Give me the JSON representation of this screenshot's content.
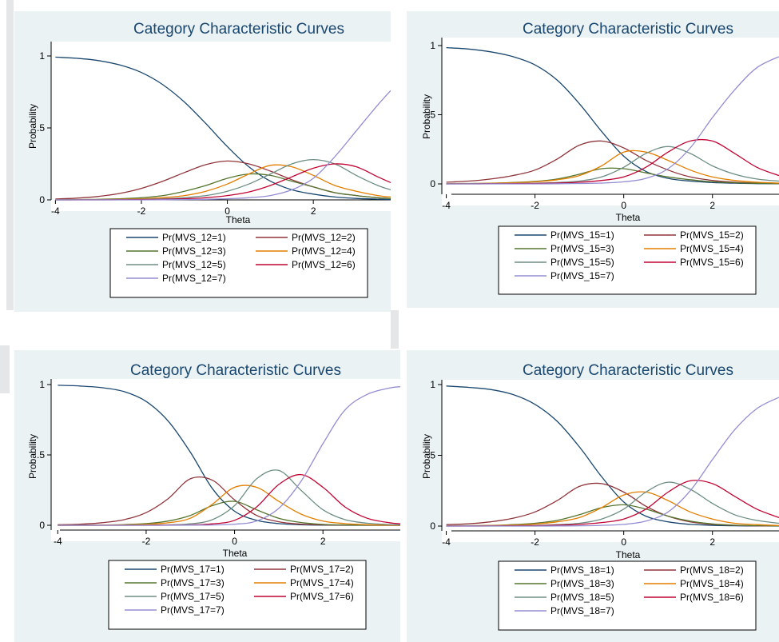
{
  "colors": {
    "panel_bg": "#eaf2f3",
    "plot_bg": "#ffffff",
    "title": "#1a476f",
    "cat1": "#1a476f",
    "cat2": "#90353b",
    "cat3": "#55752f",
    "cat4": "#e37e00",
    "cat5": "#6e8e84",
    "cat6": "#c10534",
    "cat7": "#938dd2"
  },
  "chart_data": [
    {
      "type": "line",
      "title": "Category Characteristic Curves",
      "xlabel": "Theta",
      "ylabel": "Probability",
      "xlim": [
        -4.1,
        3.8
      ],
      "ylim": [
        -0.03,
        1.03
      ],
      "xticks": [
        {
          "v": -4,
          "label": "-4"
        },
        {
          "v": -2,
          "label": "-2"
        },
        {
          "v": 0,
          "label": "0"
        },
        {
          "v": 2,
          "label": "2"
        }
      ],
      "yticks": [
        {
          "v": 0,
          "label": "0"
        },
        {
          "v": 0.5,
          "label": ".5"
        },
        {
          "v": 1,
          "label": "1"
        }
      ],
      "x": [
        -4.0,
        -3.5,
        -3.0,
        -2.5,
        -2.0,
        -1.5,
        -1.0,
        -0.5,
        0.0,
        0.5,
        1.0,
        1.5,
        2.0,
        2.5,
        3.0,
        3.5,
        3.8
      ],
      "series": [
        {
          "name": "Pr(MVS_12=1)",
          "color": "#1a476f",
          "values": [
            0.992,
            0.984,
            0.968,
            0.937,
            0.885,
            0.8,
            0.68,
            0.53,
            0.37,
            0.23,
            0.13,
            0.07,
            0.04,
            0.02,
            0.01,
            0.005,
            0.003
          ]
        },
        {
          "name": "Pr(MVS_12=2)",
          "color": "#90353b",
          "values": [
            0.006,
            0.012,
            0.024,
            0.045,
            0.08,
            0.13,
            0.19,
            0.245,
            0.27,
            0.25,
            0.2,
            0.14,
            0.09,
            0.05,
            0.03,
            0.015,
            0.01
          ]
        },
        {
          "name": "Pr(MVS_12=3)",
          "color": "#55752f",
          "values": [
            0.001,
            0.002,
            0.004,
            0.008,
            0.015,
            0.03,
            0.06,
            0.1,
            0.15,
            0.18,
            0.17,
            0.13,
            0.09,
            0.05,
            0.03,
            0.015,
            0.01
          ]
        },
        {
          "name": "Pr(MVS_12=4)",
          "color": "#e37e00",
          "values": [
            0.0005,
            0.001,
            0.002,
            0.004,
            0.008,
            0.016,
            0.03,
            0.06,
            0.11,
            0.18,
            0.24,
            0.23,
            0.17,
            0.1,
            0.06,
            0.03,
            0.02
          ]
        },
        {
          "name": "Pr(MVS_12=5)",
          "color": "#6e8e84",
          "values": [
            0,
            0.0005,
            0.001,
            0.002,
            0.004,
            0.008,
            0.015,
            0.03,
            0.06,
            0.11,
            0.18,
            0.25,
            0.28,
            0.25,
            0.17,
            0.1,
            0.07
          ]
        },
        {
          "name": "Pr(MVS_12=6)",
          "color": "#c10534",
          "values": [
            0,
            0,
            0,
            0.001,
            0.002,
            0.004,
            0.008,
            0.015,
            0.03,
            0.055,
            0.1,
            0.16,
            0.22,
            0.25,
            0.23,
            0.16,
            0.12
          ]
        },
        {
          "name": "Pr(MVS_12=7)",
          "color": "#938dd2",
          "values": [
            0,
            0,
            0,
            0,
            0,
            0.001,
            0.002,
            0.004,
            0.008,
            0.015,
            0.03,
            0.07,
            0.15,
            0.3,
            0.48,
            0.66,
            0.76
          ]
        }
      ]
    },
    {
      "type": "line",
      "title": "Category Characteristic Curves",
      "xlabel": "Theta",
      "ylabel": "Probability",
      "xlim": [
        -4.1,
        3.5
      ],
      "ylim": [
        -0.03,
        1.03
      ],
      "xticks": [
        {
          "v": -4,
          "label": "-4"
        },
        {
          "v": -2,
          "label": "-2"
        },
        {
          "v": 0,
          "label": "0"
        },
        {
          "v": 2,
          "label": "2"
        }
      ],
      "yticks": [
        {
          "v": 0,
          "label": "0"
        },
        {
          "v": 0.5,
          "label": ".5"
        },
        {
          "v": 1,
          "label": "1"
        }
      ],
      "x": [
        -4.0,
        -3.5,
        -3.0,
        -2.5,
        -2.0,
        -1.5,
        -1.0,
        -0.5,
        0.0,
        0.5,
        1.0,
        1.5,
        2.0,
        2.5,
        3.0,
        3.5
      ],
      "series": [
        {
          "name": "Pr(MVS_15=1)",
          "color": "#1a476f",
          "values": [
            0.985,
            0.975,
            0.955,
            0.92,
            0.86,
            0.75,
            0.58,
            0.38,
            0.2,
            0.09,
            0.04,
            0.02,
            0.01,
            0.005,
            0.002,
            0.001
          ]
        },
        {
          "name": "Pr(MVS_15=2)",
          "color": "#90353b",
          "values": [
            0.012,
            0.02,
            0.035,
            0.06,
            0.1,
            0.18,
            0.28,
            0.31,
            0.26,
            0.17,
            0.1,
            0.05,
            0.025,
            0.012,
            0.006,
            0.003
          ]
        },
        {
          "name": "Pr(MVS_15=3)",
          "color": "#55752f",
          "values": [
            0.002,
            0.003,
            0.005,
            0.01,
            0.018,
            0.035,
            0.07,
            0.11,
            0.11,
            0.08,
            0.05,
            0.03,
            0.015,
            0.008,
            0.004,
            0.002
          ]
        },
        {
          "name": "Pr(MVS_15=4)",
          "color": "#e37e00",
          "values": [
            0.001,
            0.002,
            0.004,
            0.008,
            0.015,
            0.03,
            0.06,
            0.13,
            0.23,
            0.23,
            0.17,
            0.1,
            0.05,
            0.025,
            0.012,
            0.006
          ]
        },
        {
          "name": "Pr(MVS_15=5)",
          "color": "#6e8e84",
          "values": [
            0,
            0.001,
            0.001,
            0.003,
            0.005,
            0.01,
            0.02,
            0.05,
            0.12,
            0.22,
            0.27,
            0.22,
            0.13,
            0.07,
            0.035,
            0.02
          ]
        },
        {
          "name": "Pr(MVS_15=6)",
          "color": "#c10534",
          "values": [
            0,
            0,
            0.001,
            0.002,
            0.003,
            0.006,
            0.012,
            0.025,
            0.05,
            0.12,
            0.23,
            0.31,
            0.31,
            0.22,
            0.12,
            0.06
          ]
        },
        {
          "name": "Pr(MVS_15=7)",
          "color": "#938dd2",
          "values": [
            0,
            0,
            0,
            0,
            0,
            0.001,
            0.003,
            0.006,
            0.015,
            0.04,
            0.11,
            0.26,
            0.48,
            0.68,
            0.84,
            0.92
          ]
        }
      ]
    },
    {
      "type": "line",
      "title": "Category Characteristic Curves",
      "xlabel": "Theta",
      "ylabel": "Probability",
      "xlim": [
        -4.15,
        3.75
      ],
      "ylim": [
        -0.03,
        1.03
      ],
      "xticks": [
        {
          "v": -4,
          "label": "-4"
        },
        {
          "v": -2,
          "label": "-2"
        },
        {
          "v": 0,
          "label": "0"
        },
        {
          "v": 2,
          "label": "2"
        }
      ],
      "yticks": [
        {
          "v": 0,
          "label": "0"
        },
        {
          "v": 0.5,
          "label": ".5"
        },
        {
          "v": 1,
          "label": "1"
        }
      ],
      "x": [
        -4.0,
        -3.5,
        -3.0,
        -2.5,
        -2.0,
        -1.5,
        -1.0,
        -0.5,
        0.0,
        0.5,
        1.0,
        1.5,
        2.0,
        2.5,
        3.0,
        3.5,
        3.75
      ],
      "series": [
        {
          "name": "Pr(MVS_17=1)",
          "color": "#1a476f",
          "values": [
            0.995,
            0.99,
            0.978,
            0.95,
            0.88,
            0.74,
            0.52,
            0.26,
            0.1,
            0.035,
            0.012,
            0.004,
            0.001,
            0,
            0,
            0,
            0
          ]
        },
        {
          "name": "Pr(MVS_17=2)",
          "color": "#90353b",
          "values": [
            0.004,
            0.008,
            0.018,
            0.04,
            0.09,
            0.19,
            0.33,
            0.32,
            0.18,
            0.07,
            0.025,
            0.008,
            0.003,
            0.001,
            0,
            0,
            0
          ]
        },
        {
          "name": "Pr(MVS_17=3)",
          "color": "#55752f",
          "values": [
            0,
            0.001,
            0.002,
            0.005,
            0.012,
            0.03,
            0.07,
            0.14,
            0.17,
            0.11,
            0.05,
            0.02,
            0.006,
            0.002,
            0.001,
            0,
            0
          ]
        },
        {
          "name": "Pr(MVS_17=4)",
          "color": "#e37e00",
          "values": [
            0,
            0,
            0.001,
            0.003,
            0.007,
            0.018,
            0.05,
            0.15,
            0.27,
            0.27,
            0.17,
            0.08,
            0.03,
            0.012,
            0.004,
            0.001,
            0.001
          ]
        },
        {
          "name": "Pr(MVS_17=5)",
          "color": "#6e8e84",
          "values": [
            0,
            0,
            0,
            0,
            0.001,
            0.003,
            0.01,
            0.04,
            0.14,
            0.33,
            0.39,
            0.25,
            0.11,
            0.04,
            0.015,
            0.005,
            0.003
          ]
        },
        {
          "name": "Pr(MVS_17=6)",
          "color": "#c10534",
          "values": [
            0,
            0,
            0,
            0,
            0,
            0.001,
            0.003,
            0.01,
            0.035,
            0.13,
            0.29,
            0.36,
            0.27,
            0.13,
            0.05,
            0.018,
            0.01
          ]
        },
        {
          "name": "Pr(MVS_17=7)",
          "color": "#938dd2",
          "values": [
            0,
            0,
            0,
            0,
            0,
            0,
            0.001,
            0.002,
            0.008,
            0.03,
            0.12,
            0.31,
            0.58,
            0.82,
            0.93,
            0.975,
            0.985
          ]
        }
      ]
    },
    {
      "type": "line",
      "title": "Category Characteristic Curves",
      "xlabel": "Theta",
      "ylabel": "Probability",
      "xlim": [
        -4.1,
        3.5
      ],
      "ylim": [
        -0.03,
        1.03
      ],
      "xticks": [
        {
          "v": -4,
          "label": "-4"
        },
        {
          "v": -2,
          "label": "-2"
        },
        {
          "v": 0,
          "label": "0"
        },
        {
          "v": 2,
          "label": "2"
        }
      ],
      "yticks": [
        {
          "v": 0,
          "label": "0"
        },
        {
          "v": 0.5,
          "label": ".5"
        },
        {
          "v": 1,
          "label": "1"
        }
      ],
      "x": [
        -4.0,
        -3.5,
        -3.0,
        -2.5,
        -2.0,
        -1.5,
        -1.0,
        -0.5,
        0.0,
        0.5,
        1.0,
        1.5,
        2.0,
        2.5,
        3.0,
        3.5
      ],
      "series": [
        {
          "name": "Pr(MVS_18=1)",
          "color": "#1a476f",
          "values": [
            0.99,
            0.98,
            0.965,
            0.93,
            0.86,
            0.74,
            0.56,
            0.35,
            0.17,
            0.07,
            0.03,
            0.012,
            0.005,
            0.002,
            0.001,
            0
          ]
        },
        {
          "name": "Pr(MVS_18=2)",
          "color": "#90353b",
          "values": [
            0.01,
            0.016,
            0.03,
            0.055,
            0.1,
            0.18,
            0.28,
            0.3,
            0.24,
            0.14,
            0.07,
            0.03,
            0.012,
            0.005,
            0.002,
            0.001
          ]
        },
        {
          "name": "Pr(MVS_18=3)",
          "color": "#55752f",
          "values": [
            0.002,
            0.003,
            0.005,
            0.01,
            0.02,
            0.04,
            0.08,
            0.13,
            0.15,
            0.12,
            0.07,
            0.035,
            0.015,
            0.006,
            0.003,
            0.001
          ]
        },
        {
          "name": "Pr(MVS_18=4)",
          "color": "#e37e00",
          "values": [
            0.001,
            0.002,
            0.004,
            0.007,
            0.014,
            0.03,
            0.06,
            0.13,
            0.22,
            0.24,
            0.18,
            0.1,
            0.05,
            0.02,
            0.01,
            0.004
          ]
        },
        {
          "name": "Pr(MVS_18=5)",
          "color": "#6e8e84",
          "values": [
            0,
            0.001,
            0.001,
            0.003,
            0.005,
            0.01,
            0.02,
            0.05,
            0.12,
            0.24,
            0.31,
            0.26,
            0.16,
            0.08,
            0.04,
            0.02
          ]
        },
        {
          "name": "Pr(MVS_18=6)",
          "color": "#c10534",
          "values": [
            0,
            0,
            0.001,
            0.002,
            0.003,
            0.006,
            0.012,
            0.025,
            0.05,
            0.12,
            0.24,
            0.32,
            0.3,
            0.21,
            0.12,
            0.06
          ]
        },
        {
          "name": "Pr(MVS_18=7)",
          "color": "#938dd2",
          "values": [
            0,
            0,
            0,
            0,
            0,
            0.001,
            0.002,
            0.005,
            0.012,
            0.035,
            0.1,
            0.25,
            0.47,
            0.68,
            0.83,
            0.91
          ]
        }
      ]
    }
  ]
}
